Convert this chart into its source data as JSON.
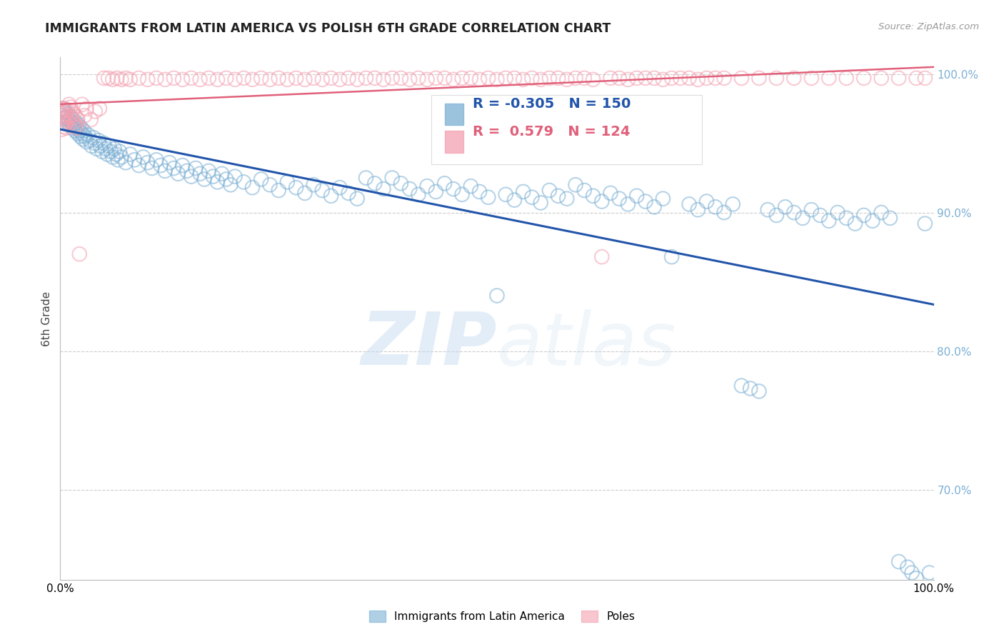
{
  "title": "IMMIGRANTS FROM LATIN AMERICA VS POLISH 6TH GRADE CORRELATION CHART",
  "source": "Source: ZipAtlas.com",
  "ylabel": "6th Grade",
  "xlim": [
    0.0,
    1.0
  ],
  "ylim": [
    0.635,
    1.012
  ],
  "yticks": [
    0.7,
    0.8,
    0.9,
    1.0
  ],
  "ytick_labels": [
    "70.0%",
    "80.0%",
    "90.0%",
    "100.0%"
  ],
  "legend_blue_label": "Immigrants from Latin America",
  "legend_pink_label": "Poles",
  "r_blue": -0.305,
  "n_blue": 150,
  "r_pink": 0.579,
  "n_pink": 124,
  "blue_color": "#7BAFD4",
  "pink_color": "#F4A0B0",
  "blue_line_color": "#2255AA",
  "pink_line_color": "#E0607A",
  "blue_scatter": [
    [
      0.002,
      0.97
    ],
    [
      0.003,
      0.975
    ],
    [
      0.004,
      0.972
    ],
    [
      0.005,
      0.968
    ],
    [
      0.006,
      0.973
    ],
    [
      0.007,
      0.969
    ],
    [
      0.008,
      0.965
    ],
    [
      0.009,
      0.971
    ],
    [
      0.01,
      0.967
    ],
    [
      0.011,
      0.963
    ],
    [
      0.012,
      0.969
    ],
    [
      0.013,
      0.965
    ],
    [
      0.014,
      0.961
    ],
    [
      0.015,
      0.967
    ],
    [
      0.016,
      0.963
    ],
    [
      0.017,
      0.959
    ],
    [
      0.018,
      0.965
    ],
    [
      0.019,
      0.961
    ],
    [
      0.02,
      0.957
    ],
    [
      0.021,
      0.963
    ],
    [
      0.022,
      0.959
    ],
    [
      0.023,
      0.955
    ],
    [
      0.024,
      0.961
    ],
    [
      0.025,
      0.957
    ],
    [
      0.026,
      0.953
    ],
    [
      0.027,
      0.959
    ],
    [
      0.028,
      0.955
    ],
    [
      0.03,
      0.951
    ],
    [
      0.032,
      0.956
    ],
    [
      0.034,
      0.952
    ],
    [
      0.036,
      0.948
    ],
    [
      0.038,
      0.954
    ],
    [
      0.04,
      0.95
    ],
    [
      0.042,
      0.946
    ],
    [
      0.044,
      0.952
    ],
    [
      0.046,
      0.948
    ],
    [
      0.048,
      0.944
    ],
    [
      0.05,
      0.95
    ],
    [
      0.052,
      0.946
    ],
    [
      0.054,
      0.942
    ],
    [
      0.056,
      0.948
    ],
    [
      0.058,
      0.944
    ],
    [
      0.06,
      0.94
    ],
    [
      0.062,
      0.946
    ],
    [
      0.064,
      0.942
    ],
    [
      0.066,
      0.938
    ],
    [
      0.068,
      0.944
    ],
    [
      0.07,
      0.94
    ],
    [
      0.075,
      0.936
    ],
    [
      0.08,
      0.942
    ],
    [
      0.085,
      0.938
    ],
    [
      0.09,
      0.934
    ],
    [
      0.095,
      0.94
    ],
    [
      0.1,
      0.936
    ],
    [
      0.105,
      0.932
    ],
    [
      0.11,
      0.938
    ],
    [
      0.115,
      0.934
    ],
    [
      0.12,
      0.93
    ],
    [
      0.125,
      0.936
    ],
    [
      0.13,
      0.932
    ],
    [
      0.135,
      0.928
    ],
    [
      0.14,
      0.934
    ],
    [
      0.145,
      0.93
    ],
    [
      0.15,
      0.926
    ],
    [
      0.155,
      0.932
    ],
    [
      0.16,
      0.928
    ],
    [
      0.165,
      0.924
    ],
    [
      0.17,
      0.93
    ],
    [
      0.175,
      0.926
    ],
    [
      0.18,
      0.922
    ],
    [
      0.185,
      0.928
    ],
    [
      0.19,
      0.924
    ],
    [
      0.195,
      0.92
    ],
    [
      0.2,
      0.926
    ],
    [
      0.21,
      0.922
    ],
    [
      0.22,
      0.918
    ],
    [
      0.23,
      0.924
    ],
    [
      0.24,
      0.92
    ],
    [
      0.25,
      0.916
    ],
    [
      0.26,
      0.922
    ],
    [
      0.27,
      0.918
    ],
    [
      0.28,
      0.914
    ],
    [
      0.29,
      0.92
    ],
    [
      0.3,
      0.916
    ],
    [
      0.31,
      0.912
    ],
    [
      0.32,
      0.918
    ],
    [
      0.33,
      0.914
    ],
    [
      0.34,
      0.91
    ],
    [
      0.35,
      0.925
    ],
    [
      0.36,
      0.921
    ],
    [
      0.37,
      0.917
    ],
    [
      0.38,
      0.925
    ],
    [
      0.39,
      0.921
    ],
    [
      0.4,
      0.917
    ],
    [
      0.41,
      0.913
    ],
    [
      0.42,
      0.919
    ],
    [
      0.43,
      0.915
    ],
    [
      0.44,
      0.921
    ],
    [
      0.45,
      0.917
    ],
    [
      0.46,
      0.913
    ],
    [
      0.47,
      0.919
    ],
    [
      0.48,
      0.915
    ],
    [
      0.49,
      0.911
    ],
    [
      0.5,
      0.84
    ],
    [
      0.51,
      0.913
    ],
    [
      0.52,
      0.909
    ],
    [
      0.53,
      0.915
    ],
    [
      0.54,
      0.911
    ],
    [
      0.55,
      0.907
    ],
    [
      0.56,
      0.916
    ],
    [
      0.57,
      0.912
    ],
    [
      0.58,
      0.91
    ],
    [
      0.59,
      0.92
    ],
    [
      0.6,
      0.916
    ],
    [
      0.61,
      0.912
    ],
    [
      0.62,
      0.908
    ],
    [
      0.63,
      0.914
    ],
    [
      0.64,
      0.91
    ],
    [
      0.65,
      0.906
    ],
    [
      0.66,
      0.912
    ],
    [
      0.67,
      0.908
    ],
    [
      0.68,
      0.904
    ],
    [
      0.69,
      0.91
    ],
    [
      0.7,
      0.868
    ],
    [
      0.72,
      0.906
    ],
    [
      0.73,
      0.902
    ],
    [
      0.74,
      0.908
    ],
    [
      0.75,
      0.904
    ],
    [
      0.76,
      0.9
    ],
    [
      0.77,
      0.906
    ],
    [
      0.78,
      0.775
    ],
    [
      0.79,
      0.773
    ],
    [
      0.8,
      0.771
    ],
    [
      0.81,
      0.902
    ],
    [
      0.82,
      0.898
    ],
    [
      0.83,
      0.904
    ],
    [
      0.84,
      0.9
    ],
    [
      0.85,
      0.896
    ],
    [
      0.86,
      0.902
    ],
    [
      0.87,
      0.898
    ],
    [
      0.88,
      0.894
    ],
    [
      0.89,
      0.9
    ],
    [
      0.9,
      0.896
    ],
    [
      0.91,
      0.892
    ],
    [
      0.92,
      0.898
    ],
    [
      0.93,
      0.894
    ],
    [
      0.94,
      0.9
    ],
    [
      0.95,
      0.896
    ],
    [
      0.96,
      0.648
    ],
    [
      0.97,
      0.644
    ],
    [
      0.975,
      0.64
    ],
    [
      0.98,
      0.636
    ],
    [
      0.99,
      0.892
    ],
    [
      0.995,
      0.64
    ]
  ],
  "pink_scatter": [
    [
      0.001,
      0.972
    ],
    [
      0.002,
      0.968
    ],
    [
      0.002,
      0.96
    ],
    [
      0.003,
      0.975
    ],
    [
      0.003,
      0.965
    ],
    [
      0.004,
      0.97
    ],
    [
      0.004,
      0.962
    ],
    [
      0.005,
      0.975
    ],
    [
      0.005,
      0.967
    ],
    [
      0.006,
      0.972
    ],
    [
      0.006,
      0.964
    ],
    [
      0.007,
      0.969
    ],
    [
      0.007,
      0.961
    ],
    [
      0.008,
      0.974
    ],
    [
      0.009,
      0.966
    ],
    [
      0.01,
      0.978
    ],
    [
      0.011,
      0.97
    ],
    [
      0.012,
      0.976
    ],
    [
      0.013,
      0.968
    ],
    [
      0.014,
      0.973
    ],
    [
      0.015,
      0.965
    ],
    [
      0.016,
      0.971
    ],
    [
      0.017,
      0.963
    ],
    [
      0.018,
      0.969
    ],
    [
      0.019,
      0.961
    ],
    [
      0.02,
      0.967
    ],
    [
      0.022,
      0.87
    ],
    [
      0.025,
      0.978
    ],
    [
      0.028,
      0.97
    ],
    [
      0.03,
      0.975
    ],
    [
      0.035,
      0.967
    ],
    [
      0.04,
      0.973
    ],
    [
      0.045,
      0.975
    ],
    [
      0.05,
      0.997
    ],
    [
      0.055,
      0.997
    ],
    [
      0.06,
      0.996
    ],
    [
      0.065,
      0.997
    ],
    [
      0.07,
      0.996
    ],
    [
      0.075,
      0.997
    ],
    [
      0.08,
      0.996
    ],
    [
      0.09,
      0.997
    ],
    [
      0.1,
      0.996
    ],
    [
      0.11,
      0.997
    ],
    [
      0.12,
      0.996
    ],
    [
      0.13,
      0.997
    ],
    [
      0.14,
      0.996
    ],
    [
      0.15,
      0.997
    ],
    [
      0.16,
      0.996
    ],
    [
      0.17,
      0.997
    ],
    [
      0.18,
      0.996
    ],
    [
      0.19,
      0.997
    ],
    [
      0.2,
      0.996
    ],
    [
      0.21,
      0.997
    ],
    [
      0.22,
      0.996
    ],
    [
      0.23,
      0.997
    ],
    [
      0.24,
      0.996
    ],
    [
      0.25,
      0.997
    ],
    [
      0.26,
      0.996
    ],
    [
      0.27,
      0.997
    ],
    [
      0.28,
      0.996
    ],
    [
      0.29,
      0.997
    ],
    [
      0.3,
      0.996
    ],
    [
      0.31,
      0.997
    ],
    [
      0.32,
      0.996
    ],
    [
      0.33,
      0.997
    ],
    [
      0.34,
      0.996
    ],
    [
      0.35,
      0.997
    ],
    [
      0.36,
      0.997
    ],
    [
      0.37,
      0.996
    ],
    [
      0.38,
      0.997
    ],
    [
      0.39,
      0.997
    ],
    [
      0.4,
      0.996
    ],
    [
      0.41,
      0.997
    ],
    [
      0.42,
      0.996
    ],
    [
      0.43,
      0.997
    ],
    [
      0.44,
      0.997
    ],
    [
      0.45,
      0.996
    ],
    [
      0.46,
      0.997
    ],
    [
      0.47,
      0.997
    ],
    [
      0.48,
      0.996
    ],
    [
      0.49,
      0.997
    ],
    [
      0.5,
      0.996
    ],
    [
      0.51,
      0.997
    ],
    [
      0.52,
      0.997
    ],
    [
      0.53,
      0.996
    ],
    [
      0.54,
      0.997
    ],
    [
      0.55,
      0.996
    ],
    [
      0.56,
      0.997
    ],
    [
      0.57,
      0.997
    ],
    [
      0.58,
      0.996
    ],
    [
      0.59,
      0.997
    ],
    [
      0.6,
      0.997
    ],
    [
      0.61,
      0.996
    ],
    [
      0.62,
      0.868
    ],
    [
      0.63,
      0.997
    ],
    [
      0.64,
      0.997
    ],
    [
      0.65,
      0.996
    ],
    [
      0.66,
      0.997
    ],
    [
      0.67,
      0.997
    ],
    [
      0.68,
      0.997
    ],
    [
      0.69,
      0.996
    ],
    [
      0.7,
      0.997
    ],
    [
      0.71,
      0.997
    ],
    [
      0.72,
      0.997
    ],
    [
      0.73,
      0.996
    ],
    [
      0.74,
      0.997
    ],
    [
      0.75,
      0.997
    ],
    [
      0.76,
      0.997
    ],
    [
      0.78,
      0.997
    ],
    [
      0.8,
      0.997
    ],
    [
      0.82,
      0.997
    ],
    [
      0.84,
      0.997
    ],
    [
      0.86,
      0.997
    ],
    [
      0.88,
      0.997
    ],
    [
      0.9,
      0.997
    ],
    [
      0.92,
      0.997
    ],
    [
      0.94,
      0.997
    ],
    [
      0.96,
      0.997
    ],
    [
      0.98,
      0.997
    ],
    [
      0.99,
      0.997
    ]
  ]
}
